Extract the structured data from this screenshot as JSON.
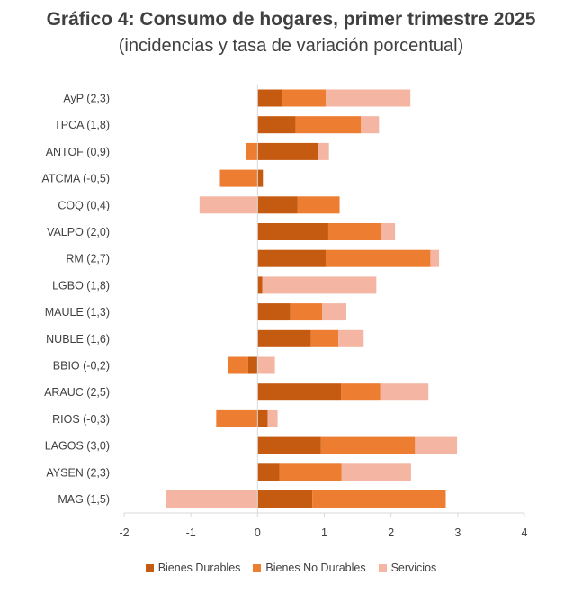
{
  "chart_data": {
    "type": "bar",
    "orientation": "horizontal",
    "stacked": true,
    "title": "Gráfico 4: Consumo de hogares, primer trimestre 2025",
    "subtitle": "(incidencias y tasa de variación porcentual)",
    "categories": [
      "AyP (2,3)",
      "TPCA (1,8)",
      "ANTOF (0,9)",
      "ATCMA (-0,5)",
      "COQ (0,4)",
      "VALPO (2,0)",
      "RM (2,7)",
      "LGBO (1,8)",
      "MAULE (1,3)",
      "NUBLE (1,6)",
      "BBIO (-0,2)",
      "ARAUC (2,5)",
      "RIOS (-0,3)",
      "LAGOS (3,0)",
      "AYSEN (2,3)",
      "MAG (1,5)"
    ],
    "series": [
      {
        "name": "Bienes Durables",
        "color": "#C55A11",
        "values": [
          0.37,
          0.57,
          0.91,
          0.08,
          0.6,
          1.06,
          1.02,
          0.07,
          0.49,
          0.8,
          -0.14,
          1.25,
          0.15,
          0.95,
          0.33,
          0.82
        ]
      },
      {
        "name": "Bienes No Durables",
        "color": "#ED7D31",
        "values": [
          0.65,
          0.98,
          -0.18,
          -0.56,
          0.63,
          0.8,
          1.57,
          0.0,
          0.48,
          0.41,
          -0.31,
          0.59,
          -0.62,
          1.41,
          0.93,
          2.0
        ]
      },
      {
        "name": "Servicios",
        "color": "#F4B6A3",
        "values": [
          1.27,
          0.27,
          0.16,
          -0.02,
          -0.87,
          0.2,
          0.13,
          1.71,
          0.36,
          0.38,
          0.26,
          0.72,
          0.15,
          0.63,
          1.04,
          -1.37
        ]
      }
    ],
    "xlim": [
      -2,
      4
    ],
    "xticks": [
      "-2",
      "-1",
      "0",
      "1",
      "2",
      "3",
      "4"
    ],
    "legend_position": "bottom",
    "grid": false
  }
}
